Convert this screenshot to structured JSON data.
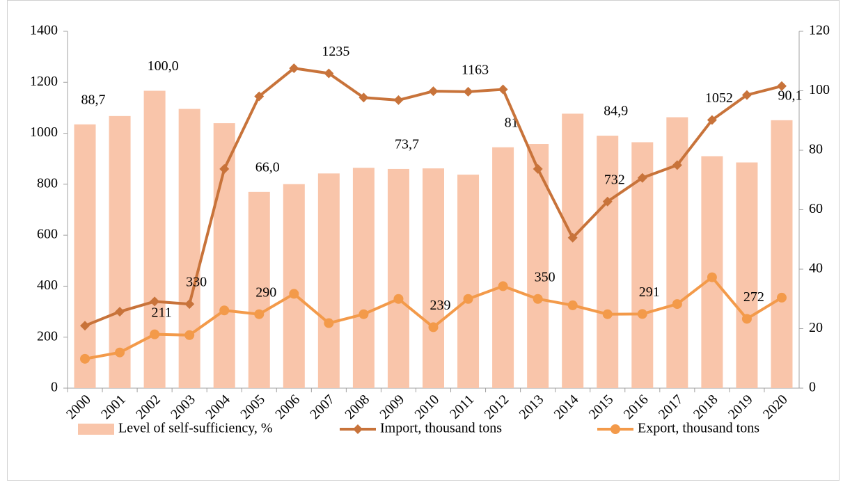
{
  "chart_data": {
    "type": "bar-line",
    "categories": [
      "2000",
      "2001",
      "2002",
      "2003",
      "2004",
      "2005",
      "2006",
      "2007",
      "2008",
      "2009",
      "2010",
      "2011",
      "2012",
      "2013",
      "2014",
      "2015",
      "2016",
      "2017",
      "2018",
      "2019",
      "2020"
    ],
    "series": [
      {
        "name": "Level of self-sufficiency, %",
        "type": "bar",
        "axis": "y2",
        "color": "#f9c5aa",
        "values": [
          88.7,
          91.5,
          100.0,
          93.9,
          89.1,
          66.0,
          68.6,
          72.2,
          74.1,
          73.7,
          73.9,
          71.8,
          81,
          82.1,
          92.3,
          84.9,
          82.7,
          91.1,
          78.0,
          75.9,
          90.1
        ],
        "value_labels": [
          "88,7",
          null,
          "100,0",
          null,
          null,
          "66,0",
          null,
          null,
          null,
          "73,7",
          null,
          null,
          "81",
          null,
          null,
          "84,9",
          null,
          null,
          null,
          null,
          "90,1"
        ]
      },
      {
        "name": "Import, thousand tons",
        "type": "line",
        "marker": "diamond",
        "color": "#c8733a",
        "values": [
          245,
          300,
          340,
          330,
          860,
          1145,
          1255,
          1235,
          1140,
          1130,
          1165,
          1163,
          1172,
          860,
          590,
          732,
          825,
          875,
          1052,
          1150,
          1185
        ],
        "value_labels": [
          null,
          null,
          null,
          "330",
          null,
          null,
          null,
          "1235",
          null,
          null,
          null,
          "1163",
          null,
          null,
          null,
          "732",
          null,
          null,
          "1052",
          null,
          null
        ]
      },
      {
        "name": "Export, thousand tons",
        "type": "line",
        "marker": "circle",
        "color": "#f39a4a",
        "values": [
          115,
          140,
          211,
          208,
          305,
          290,
          370,
          255,
          290,
          350,
          239,
          350,
          400,
          350,
          325,
          290,
          291,
          330,
          435,
          272,
          355
        ],
        "value_labels": [
          null,
          null,
          "211",
          null,
          null,
          "290",
          null,
          null,
          null,
          null,
          "239",
          null,
          null,
          "350",
          null,
          null,
          "291",
          null,
          null,
          "272",
          null
        ]
      }
    ],
    "ylim": [
      0,
      1400
    ],
    "yticks": [
      0,
      200,
      400,
      600,
      800,
      1000,
      1200,
      1400
    ],
    "y2lim": [
      0,
      120
    ],
    "y2ticks": [
      0,
      20,
      40,
      60,
      80,
      100,
      120
    ],
    "grid": false,
    "legend": "bottom"
  }
}
